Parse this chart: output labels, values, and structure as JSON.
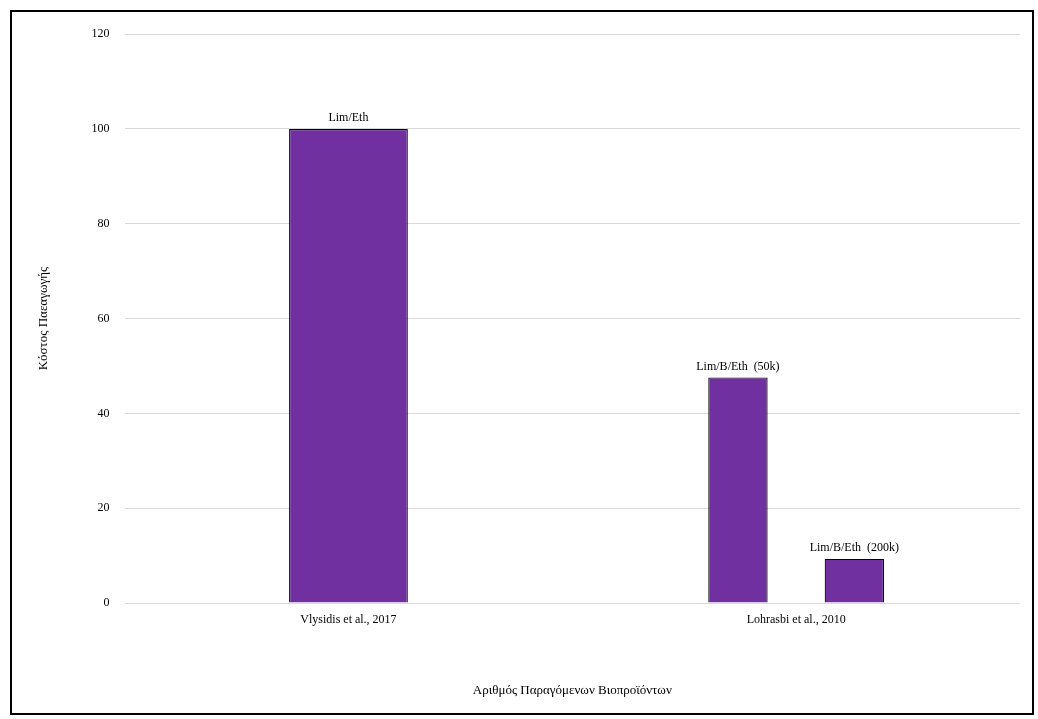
{
  "chart_data": {
    "type": "bar",
    "xlabel": "Αριθμός Παραγόμενων Βιοπροϊόντων",
    "ylabel": "Κόστος Παεαγωγής",
    "categories": [
      "Vlysidis et al., 2017",
      "Lohrasbi et al., 2010"
    ],
    "series": [
      {
        "name": "Lim/Eth",
        "color": "#7030a0",
        "values": [
          100,
          null
        ]
      },
      {
        "name": "Lim/B/Eth  (50k)",
        "color": "#7030a0",
        "values": [
          null,
          47.6
        ]
      },
      {
        "name": "Lim/B/Eth  (200k)",
        "color": "#7030a0",
        "values": [
          null,
          9.3
        ]
      }
    ],
    "ylim": [
      0,
      120
    ],
    "yticks": [
      0,
      20,
      40,
      60,
      80,
      100,
      120
    ],
    "grid": "y"
  }
}
